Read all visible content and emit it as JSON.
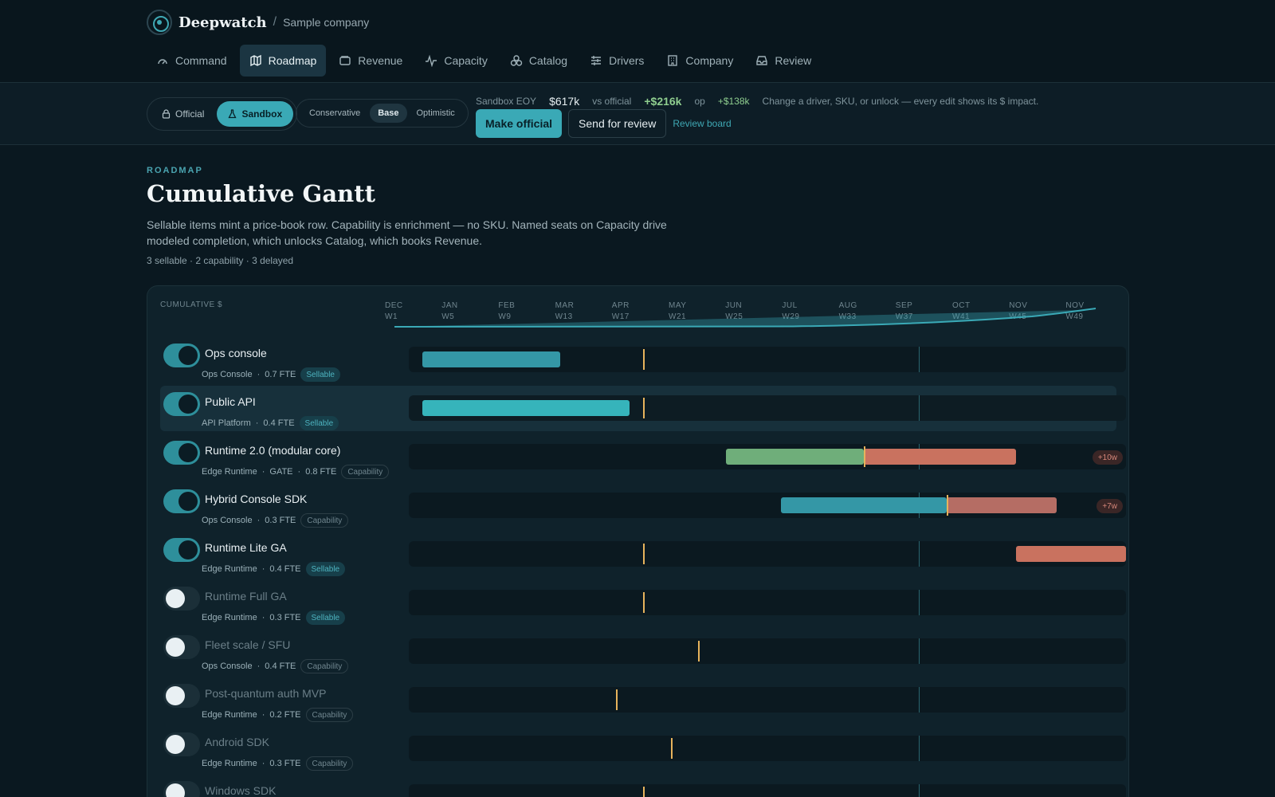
{
  "brand": {
    "name": "Deepwatch",
    "separator": "/",
    "company": "Sample company"
  },
  "nav": [
    {
      "label": "Command",
      "icon": "gauge-icon",
      "active": false
    },
    {
      "label": "Roadmap",
      "icon": "map-icon",
      "active": true
    },
    {
      "label": "Revenue",
      "icon": "wallet-icon",
      "active": false
    },
    {
      "label": "Capacity",
      "icon": "activity-icon",
      "active": false
    },
    {
      "label": "Catalog",
      "icon": "boxes-icon",
      "active": false
    },
    {
      "label": "Drivers",
      "icon": "sliders-icon",
      "active": false
    },
    {
      "label": "Company",
      "icon": "building-icon",
      "active": false
    },
    {
      "label": "Review",
      "icon": "inbox-icon",
      "active": false
    }
  ],
  "mode": {
    "official": "Official",
    "sandbox": "Sandbox",
    "active": "Sandbox"
  },
  "scenario": {
    "options": [
      "Conservative",
      "Base",
      "Optimistic"
    ],
    "active": "Base"
  },
  "kpis": {
    "sandbox_label": "Sandbox EOY",
    "sandbox_value": "$617k",
    "vs_label": "vs official",
    "vs_value": "+$216k",
    "op_label": "op",
    "op_value": "+$138k",
    "hint": "Change a driver, SKU, or unlock — every edit shows its $ impact."
  },
  "actions": {
    "make_official": "Make official",
    "send_review": "Send for review",
    "review_board": "Review board"
  },
  "page": {
    "kicker": "ROADMAP",
    "title": "Cumulative Gantt",
    "description": "Sellable items mint a price-book row. Capability is enrichment — no SKU. Named seats on Capacity drive modeled completion, which unlocks Catalog, which books Revenue.",
    "meta": "3 sellable · 2 capability · 3 delayed"
  },
  "gantt": {
    "header_label": "CUMULATIVE $",
    "months": [
      {
        "m": "DEC",
        "w": "W1"
      },
      {
        "m": "JAN",
        "w": "W5"
      },
      {
        "m": "FEB",
        "w": "W9"
      },
      {
        "m": "MAR",
        "w": "W13"
      },
      {
        "m": "APR",
        "w": "W17"
      },
      {
        "m": "MAY",
        "w": "W21"
      },
      {
        "m": "JUN",
        "w": "W25"
      },
      {
        "m": "JUL",
        "w": "W29"
      },
      {
        "m": "AUG",
        "w": "W33"
      },
      {
        "m": "SEP",
        "w": "W37"
      },
      {
        "m": "OCT",
        "w": "W41"
      },
      {
        "m": "NOV",
        "w": "W45"
      },
      {
        "m": "NOV",
        "w": "W49"
      }
    ],
    "today_week": 37,
    "total_weeks": 52,
    "colors": {
      "sellable": "#36b4bb",
      "capability": "#6fae7a",
      "delayed": "#c9725f",
      "marker": "#e7b35c",
      "accent": "#3aa9b6"
    },
    "rows": [
      {
        "name": "Ops console",
        "team": "Ops Console",
        "gate": false,
        "fte": "0.7 FTE",
        "tag": "Sellable",
        "enabled": true,
        "selected": false,
        "bars": [
          {
            "start": 1,
            "end": 11,
            "kind": "sellable"
          }
        ],
        "marker_week": 17,
        "delay": ""
      },
      {
        "name": "Public API",
        "team": "API Platform",
        "gate": false,
        "fte": "0.4 FTE",
        "tag": "Sellable",
        "enabled": true,
        "selected": true,
        "bars": [
          {
            "start": 1,
            "end": 16,
            "kind": "sellable-bright"
          }
        ],
        "marker_week": 17,
        "delay": ""
      },
      {
        "name": "Runtime 2.0 (modular core)",
        "team": "Edge Runtime",
        "gate": true,
        "gate_label": "GATE",
        "fte": "0.8 FTE",
        "tag": "Capability",
        "enabled": true,
        "selected": false,
        "bars": [
          {
            "start": 23,
            "end": 33,
            "kind": "capability"
          },
          {
            "start": 33,
            "end": 44,
            "kind": "delayed"
          }
        ],
        "marker_week": 33,
        "delay": "+10w"
      },
      {
        "name": "Hybrid Console SDK",
        "team": "Ops Console",
        "gate": false,
        "fte": "0.3 FTE",
        "tag": "Capability",
        "enabled": true,
        "selected": false,
        "bars": [
          {
            "start": 27,
            "end": 39,
            "kind": "sellable"
          },
          {
            "start": 39,
            "end": 47,
            "kind": "delayed-dim"
          }
        ],
        "marker_week": 39,
        "delay": "+7w"
      },
      {
        "name": "Runtime Lite GA",
        "team": "Edge Runtime",
        "gate": false,
        "fte": "0.4 FTE",
        "tag": "Sellable",
        "enabled": true,
        "selected": false,
        "bars": [
          {
            "start": 44,
            "end": 52,
            "kind": "delayed"
          }
        ],
        "marker_week": 17,
        "delay": ""
      },
      {
        "name": "Runtime Full GA",
        "team": "Edge Runtime",
        "gate": false,
        "fte": "0.3 FTE",
        "tag": "Sellable",
        "enabled": false,
        "selected": false,
        "bars": [],
        "marker_week": 17,
        "delay": ""
      },
      {
        "name": "Fleet scale / SFU",
        "team": "Ops Console",
        "gate": false,
        "fte": "0.4 FTE",
        "tag": "Capability",
        "enabled": false,
        "selected": false,
        "bars": [],
        "marker_week": 21,
        "delay": ""
      },
      {
        "name": "Post-quantum auth MVP",
        "team": "Edge Runtime",
        "gate": false,
        "fte": "0.2 FTE",
        "tag": "Capability",
        "enabled": false,
        "selected": false,
        "bars": [],
        "marker_week": 15,
        "delay": ""
      },
      {
        "name": "Android SDK",
        "team": "Edge Runtime",
        "gate": false,
        "fte": "0.3 FTE",
        "tag": "Capability",
        "enabled": false,
        "selected": false,
        "bars": [],
        "marker_week": 19,
        "delay": ""
      },
      {
        "name": "Windows SDK",
        "team": "",
        "gate": false,
        "fte": "",
        "tag": "",
        "enabled": false,
        "selected": false,
        "bars": [],
        "marker_week": 17,
        "delay": ""
      }
    ]
  }
}
